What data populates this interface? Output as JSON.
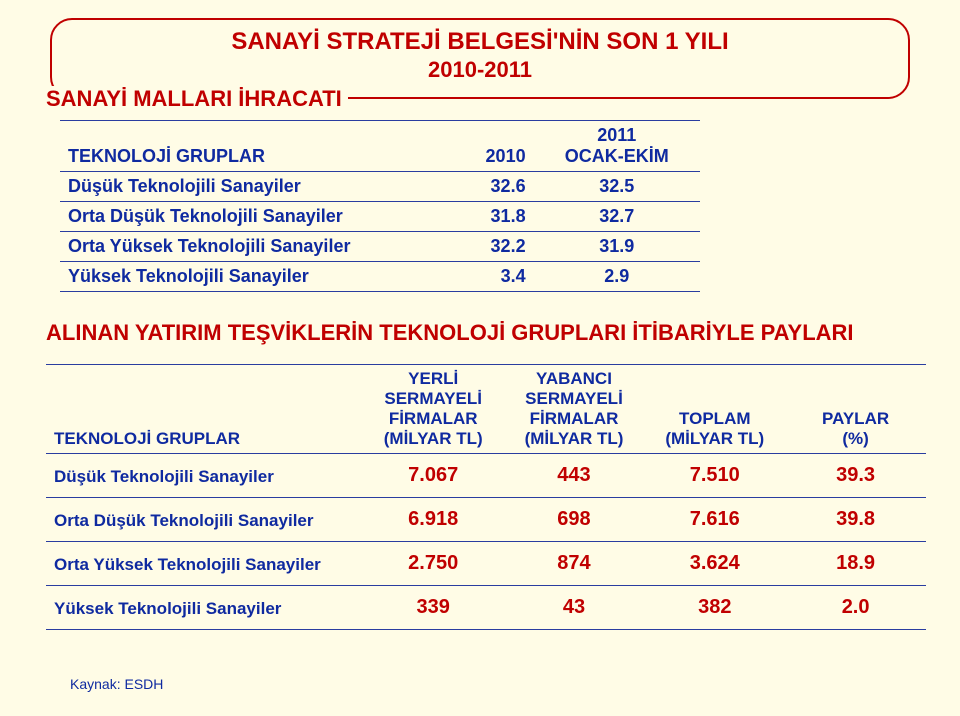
{
  "colors": {
    "bg": "#fffce6",
    "red": "#c00000",
    "blue": "#0f2aa0",
    "border": "#2a3da0"
  },
  "title": {
    "line1": "SANAYİ STRATEJİ BELGESİ'NİN SON 1 YILI",
    "line2": "2010-2011"
  },
  "subhead": "SANAYİ MALLARI İHRACATI",
  "table1": {
    "header": {
      "name": "TEKNOLOJİ GRUPLAR",
      "y2010": "2010",
      "y2011_l1": "2011",
      "y2011_l2": "OCAK-EKİM"
    },
    "rows": [
      {
        "name": "Düşük Teknolojili Sanayiler",
        "a": "32.6",
        "b": "32.5"
      },
      {
        "name": "Orta Düşük Teknolojili Sanayiler",
        "a": "31.8",
        "b": "32.7"
      },
      {
        "name": "Orta Yüksek Teknolojili Sanayiler",
        "a": "32.2",
        "b": "31.9"
      },
      {
        "name": "Yüksek Teknolojili Sanayiler",
        "a": "3.4",
        "b": "2.9"
      }
    ]
  },
  "section2_title": "ALINAN YATIRIM TEŞVİKLERİN TEKNOLOJİ GRUPLARI İTİBARİYLE PAYLARI",
  "table2": {
    "header": {
      "name": "TEKNOLOJİ GRUPLAR",
      "yerli_l1": "YERLİ",
      "yerli_l2": "SERMAYELİ",
      "yerli_l3": "FİRMALAR",
      "yerli_l4": "(MİLYAR TL)",
      "yab_l1": "YABANCI",
      "yab_l2": "SERMAYELİ",
      "yab_l3": "FİRMALAR",
      "yab_l4": "(MİLYAR TL)",
      "top_l1": "TOPLAM",
      "top_l2": "(MİLYAR TL)",
      "pay_l1": "PAYLAR",
      "pay_l2": "(%)"
    },
    "rows": [
      {
        "name": "Düşük Teknolojili Sanayiler",
        "yerli": "7.067",
        "yab": "443",
        "top": "7.510",
        "pay": "39.3"
      },
      {
        "name": "Orta Düşük Teknolojili Sanayiler",
        "yerli": "6.918",
        "yab": "698",
        "top": "7.616",
        "pay": "39.8"
      },
      {
        "name": "Orta Yüksek Teknolojili Sanayiler",
        "yerli": "2.750",
        "yab": "874",
        "top": "3.624",
        "pay": "18.9"
      },
      {
        "name": "Yüksek Teknolojili Sanayiler",
        "yerli": "339",
        "yab": "43",
        "top": "382",
        "pay": "2.0"
      }
    ]
  },
  "source": "Kaynak: ESDH"
}
